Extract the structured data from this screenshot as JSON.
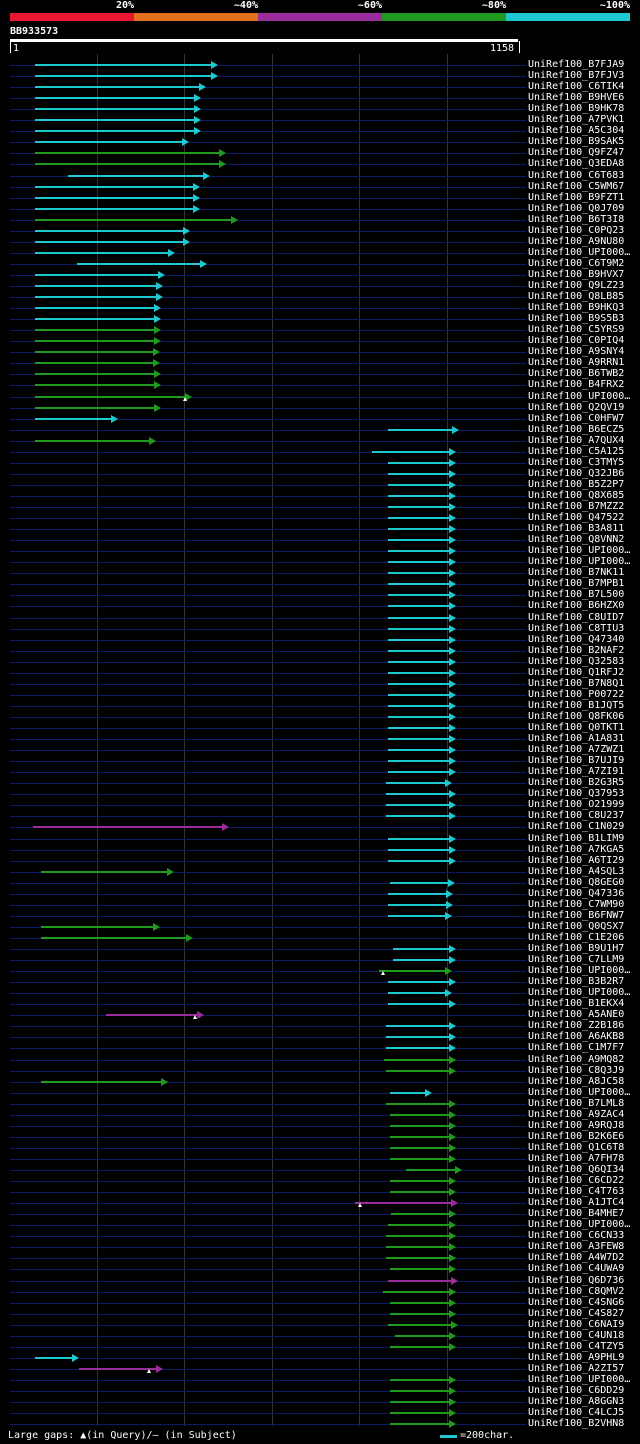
{
  "legend": {
    "labels": [
      "20%",
      "~40%",
      "~60%",
      "~80%",
      "~100%"
    ],
    "colors": [
      "#e8162e",
      "#e3701c",
      "#9b2c9b",
      "#1f9a1f",
      "#1ec8d0"
    ]
  },
  "query": {
    "id": "BB933573",
    "start": "1",
    "end": "1158"
  },
  "hits": [
    {
      "label": "UniRef100_B7FJA9",
      "c": "cyan",
      "x1": 35,
      "x2": 218
    },
    {
      "label": "UniRef100_B7FJV3",
      "c": "cyan",
      "x1": 35,
      "x2": 218
    },
    {
      "label": "UniRef100_C6TIK4",
      "c": "cyan",
      "x1": 35,
      "x2": 206
    },
    {
      "label": "UniRef100_B9HVE6",
      "c": "cyan",
      "x1": 35,
      "x2": 201
    },
    {
      "label": "UniRef100_B9HK78",
      "c": "cyan",
      "x1": 35,
      "x2": 201
    },
    {
      "label": "UniRef100_A7PVK1",
      "c": "cyan",
      "x1": 35,
      "x2": 201
    },
    {
      "label": "UniRef100_A5C304",
      "c": "cyan",
      "x1": 35,
      "x2": 201
    },
    {
      "label": "UniRef100_B9SAK5",
      "c": "cyan",
      "x1": 35,
      "x2": 189
    },
    {
      "label": "UniRef100_Q9FZ47",
      "c": "green",
      "x1": 35,
      "x2": 226
    },
    {
      "label": "UniRef100_Q3EDA8",
      "c": "green",
      "x1": 35,
      "x2": 226
    },
    {
      "label": "UniRef100_C6T683",
      "c": "cyan",
      "x1": 68,
      "x2": 210
    },
    {
      "label": "UniRef100_C5WM67",
      "c": "cyan",
      "x1": 35,
      "x2": 200
    },
    {
      "label": "UniRef100_B9FZT1",
      "c": "cyan",
      "x1": 35,
      "x2": 200
    },
    {
      "label": "UniRef100_Q0J709",
      "c": "cyan",
      "x1": 35,
      "x2": 200
    },
    {
      "label": "UniRef100_B6T3I8",
      "c": "green",
      "x1": 35,
      "x2": 238
    },
    {
      "label": "UniRef100_C0PQ23",
      "c": "cyan",
      "x1": 35,
      "x2": 190
    },
    {
      "label": "UniRef100_A9NU80",
      "c": "cyan",
      "x1": 35,
      "x2": 190
    },
    {
      "label": "UniRef100_UPI000…",
      "c": "cyan",
      "x1": 35,
      "x2": 175
    },
    {
      "label": "UniRef100_C6T9M2",
      "c": "cyan",
      "x1": 77,
      "x2": 207
    },
    {
      "label": "UniRef100_B9HVX7",
      "c": "cyan",
      "x1": 35,
      "x2": 165
    },
    {
      "label": "UniRef100_Q9LZ23",
      "c": "cyan",
      "x1": 35,
      "x2": 163
    },
    {
      "label": "UniRef100_Q8LB85",
      "c": "cyan",
      "x1": 35,
      "x2": 163
    },
    {
      "label": "UniRef100_B9HKQ3",
      "c": "cyan",
      "x1": 35,
      "x2": 161
    },
    {
      "label": "UniRef100_B9S5B3",
      "c": "cyan",
      "x1": 35,
      "x2": 161
    },
    {
      "label": "UniRef100_C5YRS9",
      "c": "green",
      "x1": 35,
      "x2": 161
    },
    {
      "label": "UniRef100_C0PIQ4",
      "c": "green",
      "x1": 35,
      "x2": 161
    },
    {
      "label": "UniRef100_A9SNY4",
      "c": "green",
      "x1": 35,
      "x2": 160
    },
    {
      "label": "UniRef100_A9RRN1",
      "c": "green",
      "x1": 35,
      "x2": 160
    },
    {
      "label": "UniRef100_B6TWB2",
      "c": "green",
      "x1": 35,
      "x2": 161
    },
    {
      "label": "UniRef100_B4FRX2",
      "c": "green",
      "x1": 35,
      "x2": 161
    },
    {
      "label": "UniRef100_UPI000…",
      "c": "green",
      "x1": 35,
      "x2": 192,
      "gap": 185
    },
    {
      "label": "UniRef100_Q2QV19",
      "c": "green",
      "x1": 35,
      "x2": 161
    },
    {
      "label": "UniRef100_C0HFW7",
      "c": "cyan",
      "x1": 35,
      "x2": 118
    },
    {
      "label": "UniRef100_B6ECZ5",
      "c": "cyan",
      "x1": 388,
      "x2": 459
    },
    {
      "label": "UniRef100_A7QUX4",
      "c": "green",
      "x1": 35,
      "x2": 156
    },
    {
      "label": "UniRef100_C5A125",
      "c": "cyan",
      "x1": 372,
      "x2": 456
    },
    {
      "label": "UniRef100_C3TMY5",
      "c": "cyan",
      "x1": 388,
      "x2": 456
    },
    {
      "label": "UniRef100_Q32JB6",
      "c": "cyan",
      "x1": 388,
      "x2": 456
    },
    {
      "label": "UniRef100_B5Z2P7",
      "c": "cyan",
      "x1": 388,
      "x2": 456
    },
    {
      "label": "UniRef100_Q8X685",
      "c": "cyan",
      "x1": 388,
      "x2": 456
    },
    {
      "label": "UniRef100_B7MZZ2",
      "c": "cyan",
      "x1": 388,
      "x2": 456
    },
    {
      "label": "UniRef100_Q47522",
      "c": "cyan",
      "x1": 388,
      "x2": 456
    },
    {
      "label": "UniRef100_B3A811",
      "c": "cyan",
      "x1": 388,
      "x2": 456
    },
    {
      "label": "UniRef100_Q8VNN2",
      "c": "cyan",
      "x1": 388,
      "x2": 456
    },
    {
      "label": "UniRef100_UPI000…",
      "c": "cyan",
      "x1": 388,
      "x2": 456
    },
    {
      "label": "UniRef100_UPI000…",
      "c": "cyan",
      "x1": 388,
      "x2": 456
    },
    {
      "label": "UniRef100_B7NK11",
      "c": "cyan",
      "x1": 388,
      "x2": 456
    },
    {
      "label": "UniRef100_B7MPB1",
      "c": "cyan",
      "x1": 388,
      "x2": 456
    },
    {
      "label": "UniRef100_B7L500",
      "c": "cyan",
      "x1": 388,
      "x2": 456
    },
    {
      "label": "UniRef100_B6HZX0",
      "c": "cyan",
      "x1": 388,
      "x2": 456
    },
    {
      "label": "UniRef100_C8UID7",
      "c": "cyan",
      "x1": 388,
      "x2": 456
    },
    {
      "label": "UniRef100_C8TIU3",
      "c": "cyan",
      "x1": 388,
      "x2": 456
    },
    {
      "label": "UniRef100_Q47340",
      "c": "cyan",
      "x1": 388,
      "x2": 456
    },
    {
      "label": "UniRef100_B2NAF2",
      "c": "cyan",
      "x1": 388,
      "x2": 456
    },
    {
      "label": "UniRef100_Q32583",
      "c": "cyan",
      "x1": 388,
      "x2": 456
    },
    {
      "label": "UniRef100_Q1RFJ2",
      "c": "cyan",
      "x1": 388,
      "x2": 456
    },
    {
      "label": "UniRef100_B7N8Q1",
      "c": "cyan",
      "x1": 388,
      "x2": 456
    },
    {
      "label": "UniRef100_P00722",
      "c": "cyan",
      "x1": 388,
      "x2": 456
    },
    {
      "label": "UniRef100_B1JQT5",
      "c": "cyan",
      "x1": 388,
      "x2": 456
    },
    {
      "label": "UniRef100_Q8FK06",
      "c": "cyan",
      "x1": 388,
      "x2": 456
    },
    {
      "label": "UniRef100_Q0TKT1",
      "c": "cyan",
      "x1": 388,
      "x2": 456
    },
    {
      "label": "UniRef100_A1A831",
      "c": "cyan",
      "x1": 388,
      "x2": 456
    },
    {
      "label": "UniRef100_A7ZWZ1",
      "c": "cyan",
      "x1": 388,
      "x2": 456
    },
    {
      "label": "UniRef100_B7UJI9",
      "c": "cyan",
      "x1": 388,
      "x2": 456
    },
    {
      "label": "UniRef100_A7ZI91",
      "c": "cyan",
      "x1": 388,
      "x2": 456
    },
    {
      "label": "UniRef100_B2G3R5",
      "c": "cyan",
      "x1": 386,
      "x2": 452
    },
    {
      "label": "UniRef100_Q37953",
      "c": "cyan",
      "x1": 386,
      "x2": 456
    },
    {
      "label": "UniRef100_O21999",
      "c": "cyan",
      "x1": 386,
      "x2": 456
    },
    {
      "label": "UniRef100_C8U237",
      "c": "cyan",
      "x1": 386,
      "x2": 456
    },
    {
      "label": "UniRef100_C1N029",
      "c": "magenta",
      "x1": 33,
      "x2": 229
    },
    {
      "label": "UniRef100_B1LIM9",
      "c": "cyan",
      "x1": 388,
      "x2": 456
    },
    {
      "label": "UniRef100_A7KGA5",
      "c": "cyan",
      "x1": 388,
      "x2": 456
    },
    {
      "label": "UniRef100_A6TI29",
      "c": "cyan",
      "x1": 388,
      "x2": 456
    },
    {
      "label": "UniRef100_A4SQL3",
      "c": "green",
      "x1": 41,
      "x2": 174
    },
    {
      "label": "UniRef100_Q8GEG0",
      "c": "cyan",
      "x1": 390,
      "x2": 455
    },
    {
      "label": "UniRef100_Q47336",
      "c": "cyan",
      "x1": 388,
      "x2": 453
    },
    {
      "label": "UniRef100_C7WM90",
      "c": "cyan",
      "x1": 388,
      "x2": 453
    },
    {
      "label": "UniRef100_B6FNW7",
      "c": "cyan",
      "x1": 388,
      "x2": 452
    },
    {
      "label": "UniRef100_Q0QSX7",
      "c": "green",
      "x1": 41,
      "x2": 160
    },
    {
      "label": "UniRef100_C1E206",
      "c": "green",
      "x1": 41,
      "x2": 193
    },
    {
      "label": "UniRef100_B9U1H7",
      "c": "cyan",
      "x1": 393,
      "x2": 456
    },
    {
      "label": "UniRef100_C7LLM9",
      "c": "cyan",
      "x1": 393,
      "x2": 456
    },
    {
      "label": "UniRef100_UPI000…",
      "c": "green",
      "x1": 379,
      "x2": 452,
      "gap": 383
    },
    {
      "label": "UniRef100_B3B2R7",
      "c": "cyan",
      "x1": 388,
      "x2": 456
    },
    {
      "label": "UniRef100_UPI000…",
      "c": "cyan",
      "x1": 388,
      "x2": 452
    },
    {
      "label": "UniRef100_B1EKX4",
      "c": "cyan",
      "x1": 388,
      "x2": 456
    },
    {
      "label": "UniRef100_A5ANE0",
      "c": "magenta",
      "x1": 106,
      "x2": 204,
      "gap": 195
    },
    {
      "label": "UniRef100_Z2B186",
      "c": "cyan",
      "x1": 386,
      "x2": 456
    },
    {
      "label": "UniRef100_A6AKB8",
      "c": "cyan",
      "x1": 386,
      "x2": 456
    },
    {
      "label": "UniRef100_C1M7F7",
      "c": "cyan",
      "x1": 386,
      "x2": 456
    },
    {
      "label": "UniRef100_A9MQ82",
      "c": "green",
      "x1": 384,
      "x2": 456
    },
    {
      "label": "UniRef100_C8Q3J9",
      "c": "green",
      "x1": 386,
      "x2": 456
    },
    {
      "label": "UniRef100_A8JC58",
      "c": "green",
      "x1": 41,
      "x2": 168
    },
    {
      "label": "UniRef100_UPI000…",
      "c": "cyan",
      "x1": 390,
      "x2": 432
    },
    {
      "label": "UniRef100_B7LML8",
      "c": "green",
      "x1": 386,
      "x2": 456
    },
    {
      "label": "UniRef100_A9ZAC4",
      "c": "green",
      "x1": 390,
      "x2": 456
    },
    {
      "label": "UniRef100_A9RQJ8",
      "c": "green",
      "x1": 390,
      "x2": 456
    },
    {
      "label": "UniRef100_B2K6E6",
      "c": "green",
      "x1": 390,
      "x2": 456
    },
    {
      "label": "UniRef100_Q1C6T8",
      "c": "green",
      "x1": 390,
      "x2": 456
    },
    {
      "label": "UniRef100_A7FH78",
      "c": "green",
      "x1": 390,
      "x2": 456
    },
    {
      "label": "UniRef100_Q6QI34",
      "c": "green",
      "x1": 406,
      "x2": 462
    },
    {
      "label": "UniRef100_C6CD22",
      "c": "green",
      "x1": 390,
      "x2": 456
    },
    {
      "label": "UniRef100_C4T763",
      "c": "green",
      "x1": 390,
      "x2": 456
    },
    {
      "label": "UniRef100_A1JTC4",
      "c": "magenta",
      "x1": 355,
      "x2": 458,
      "gap": 360
    },
    {
      "label": "UniRef100_B4MHE7",
      "c": "green",
      "x1": 391,
      "x2": 456
    },
    {
      "label": "UniRef100_UPI000…",
      "c": "green",
      "x1": 388,
      "x2": 456
    },
    {
      "label": "UniRef100_C6CN33",
      "c": "green",
      "x1": 386,
      "x2": 456
    },
    {
      "label": "UniRef100_A3FEW8",
      "c": "green",
      "x1": 386,
      "x2": 456
    },
    {
      "label": "UniRef100_A4W7D2",
      "c": "green",
      "x1": 386,
      "x2": 456
    },
    {
      "label": "UniRef100_C4UWA9",
      "c": "green",
      "x1": 390,
      "x2": 456
    },
    {
      "label": "UniRef100_Q6D736",
      "c": "magenta",
      "x1": 388,
      "x2": 458
    },
    {
      "label": "UniRef100_C8QMV2",
      "c": "green",
      "x1": 383,
      "x2": 456
    },
    {
      "label": "UniRef100_C4SNG6",
      "c": "green",
      "x1": 390,
      "x2": 456
    },
    {
      "label": "UniRef100_C4S827",
      "c": "green",
      "x1": 390,
      "x2": 456
    },
    {
      "label": "UniRef100_C6NAI9",
      "c": "green",
      "x1": 388,
      "x2": 458
    },
    {
      "label": "UniRef100_C4UN18",
      "c": "green",
      "x1": 395,
      "x2": 456
    },
    {
      "label": "UniRef100_C4TZY5",
      "c": "green",
      "x1": 390,
      "x2": 456
    },
    {
      "label": "UniRef100_A9PHL9",
      "c": "cyan",
      "x1": 35,
      "x2": 79
    },
    {
      "label": "UniRef100_A2ZI57",
      "c": "magenta",
      "x1": 79,
      "x2": 163,
      "gap": 149
    },
    {
      "label": "UniRef100_UPI000…",
      "c": "green",
      "x1": 390,
      "x2": 456
    },
    {
      "label": "UniRef100_C6DD29",
      "c": "green",
      "x1": 390,
      "x2": 456
    },
    {
      "label": "UniRef100_A8GGN3",
      "c": "green",
      "x1": 390,
      "x2": 456
    },
    {
      "label": "UniRef100_C4LCJ5",
      "c": "green",
      "x1": 390,
      "x2": 456
    },
    {
      "label": "UniRef100_B2VHN8",
      "c": "green",
      "x1": 390,
      "x2": 456
    }
  ],
  "footer": {
    "gaps_label": "Large gaps: ▲(in Query)/— (in Subject)",
    "scale_label": "=200char."
  }
}
